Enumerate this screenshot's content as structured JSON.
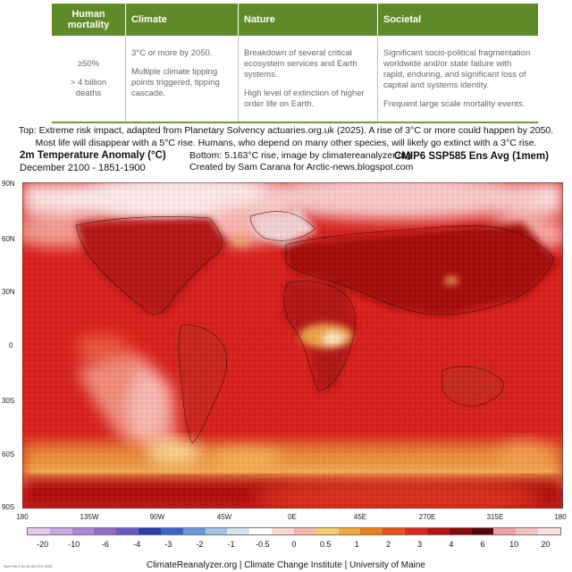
{
  "table": {
    "headers": [
      "Human mortality",
      "Climate",
      "Nature",
      "Societal"
    ],
    "cells": [
      [
        "≥50%",
        "> 4 billion deaths"
      ],
      [
        "3°C or more by 2050.",
        "Multiple climate tipping points triggered, tipping cascade."
      ],
      [
        "Breakdown of several critical ecosystem services and Earth systems.",
        "High level of extinction of higher order life on Earth."
      ],
      [
        "Significant socio-political fragmentation worldwide and/or state failure with rapid, enduring, and significant loss of capital and systems identity.",
        "Frequent large scale mortality events."
      ]
    ]
  },
  "caption": {
    "line1": "Top: Extreme risk impact, adapted from Planetary Solvency actuaries.org.uk (2025). A rise of 3°C or more could happen by 2050.",
    "line2": "Most life will disappear with a 5°C rise. Humans, who depend on many other species, will likely go extinct with a 3°C rise."
  },
  "header": {
    "title": "2m Temperature Anomaly (°C)",
    "period": "December 2100 - 1851-1900",
    "center_line1": "Bottom: 5.163°C rise, image by climatereanalyzer.org",
    "center_line2": "Created by Sam Carana for Arctic-news.blogspot.com",
    "model": "CMIP6 SSP585 Ens Avg (1mem)"
  },
  "axes": {
    "lat_labels": [
      "90N",
      "60N",
      "30N",
      "0",
      "30S",
      "60S",
      "90S"
    ],
    "lon_labels": [
      "180",
      "135W",
      "90W",
      "45W",
      "0E",
      "45E",
      "270E",
      "315E",
      "180"
    ]
  },
  "colorbar": {
    "labels": [
      "-20",
      "-10",
      "-6",
      "-4",
      "-3",
      "-2",
      "-1",
      "-0.5",
      "0",
      "0.5",
      "1",
      "2",
      "3",
      "4",
      "6",
      "10",
      "20"
    ],
    "colors": [
      "#e5c8ee",
      "#caa6e3",
      "#ad86d6",
      "#8e6bc7",
      "#6a5bc0",
      "#2d3fa8",
      "#3a66c9",
      "#6c98da",
      "#a3c4e7",
      "#d2e3f3",
      "#ffffff",
      "#fbd8d2",
      "#f7b6a8",
      "#f7cd72",
      "#f4a93a",
      "#ee7d1c",
      "#e2541a",
      "#d42b1a",
      "#b41414",
      "#8a0c0c",
      "#5a0606",
      "#f4a0a0",
      "#f6c2c2",
      "#fae0e0"
    ]
  },
  "footer": {
    "credits": "ClimateReanalyzer.org | Climate Change Institute | University of Maine",
    "timestamp": "Sun Feb 2 02:48:49 UTC 2025"
  }
}
